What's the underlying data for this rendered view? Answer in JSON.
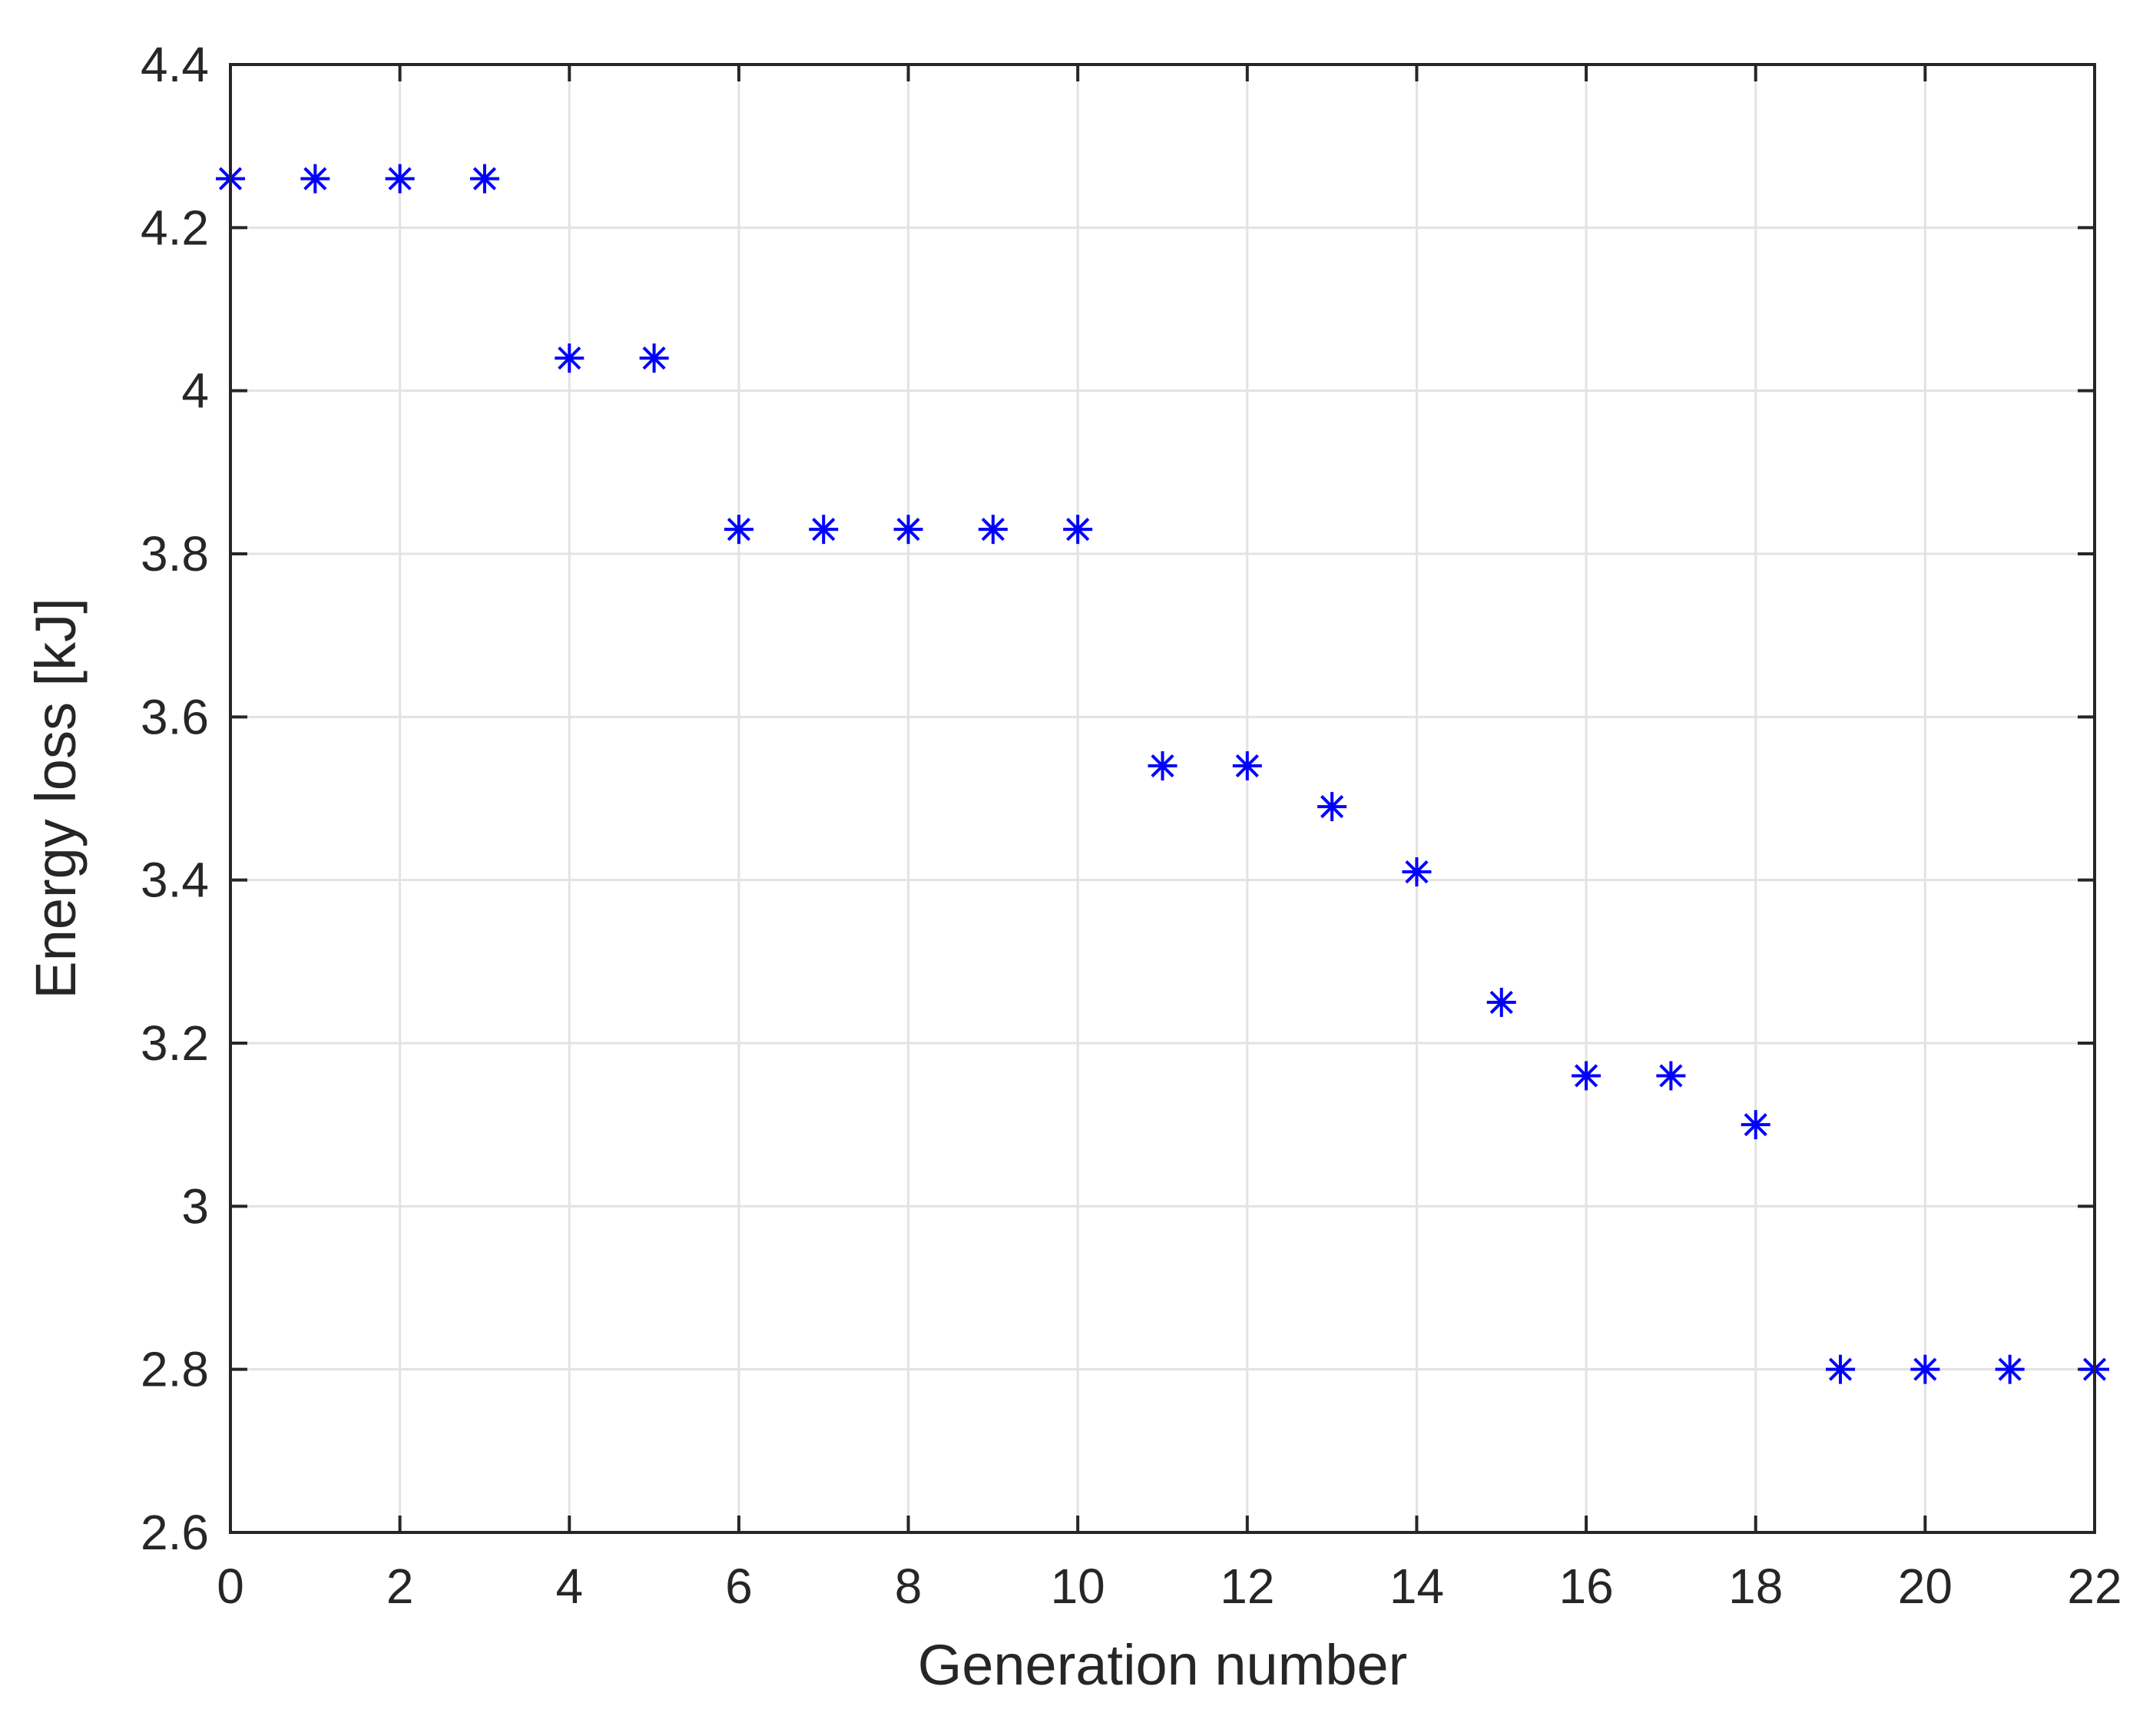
{
  "chart_data": {
    "type": "scatter",
    "title": "",
    "xlabel": "Generation number",
    "ylabel": "Energy loss [kJ]",
    "xlim": [
      0,
      22
    ],
    "ylim": [
      2.6,
      4.4
    ],
    "xticks": [
      0,
      2,
      4,
      6,
      8,
      10,
      12,
      14,
      16,
      18,
      20,
      22
    ],
    "yticks": [
      2.6,
      2.8,
      3.0,
      3.2,
      3.4,
      3.6,
      3.8,
      4.0,
      4.2,
      4.4
    ],
    "xtick_labels": [
      "0",
      "2",
      "4",
      "6",
      "8",
      "10",
      "12",
      "14",
      "16",
      "18",
      "20",
      "22"
    ],
    "ytick_labels": [
      "2.6",
      "2.8",
      "3",
      "3.2",
      "3.4",
      "3.6",
      "3.8",
      "4",
      "4.2",
      "4.4"
    ],
    "grid": true,
    "marker": "asterisk",
    "marker_color": "#0000ff",
    "series": [
      {
        "x": [
          0,
          1,
          2,
          3,
          4,
          5,
          6,
          7,
          8,
          9,
          10,
          11,
          12,
          13,
          14,
          15,
          16,
          17,
          18,
          19,
          20,
          21,
          22
        ],
        "y": [
          4.26,
          4.26,
          4.26,
          4.26,
          4.04,
          4.04,
          3.83,
          3.83,
          3.83,
          3.83,
          3.83,
          3.54,
          3.54,
          3.49,
          3.41,
          3.25,
          3.16,
          3.16,
          3.1,
          2.8,
          2.8,
          2.8,
          2.8
        ]
      }
    ]
  }
}
